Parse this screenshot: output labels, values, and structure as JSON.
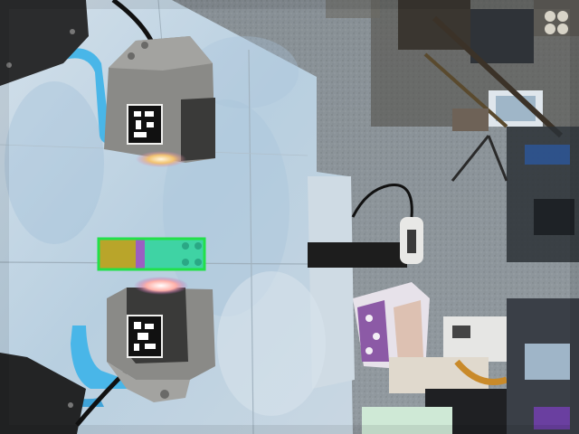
{
  "scene": {
    "kind": "robot-workspace-camera-view",
    "objects": [
      {
        "name": "gripper-finger-top",
        "fiducial": "apriltag"
      },
      {
        "name": "gripper-finger-bottom",
        "fiducial": "apriltag"
      },
      {
        "name": "toy-brick",
        "colors": [
          "#b9a52a",
          "#9b5fc2",
          "#3fd3a4"
        ]
      },
      {
        "name": "detection-box",
        "color": "#22e04a"
      },
      {
        "name": "cable-sensor-clip"
      },
      {
        "name": "purple-white-box"
      },
      {
        "name": "lab-equipment-background"
      }
    ]
  },
  "colors": {
    "table": "#b8cfe0",
    "table_shadow": "#8fb2d0",
    "blue_fixture": "#49b6e8",
    "gripper_body": "#8a8a87",
    "gripper_light": "#a3a3a0",
    "floor": "#8e969c",
    "detection_box": "#22e04a"
  }
}
